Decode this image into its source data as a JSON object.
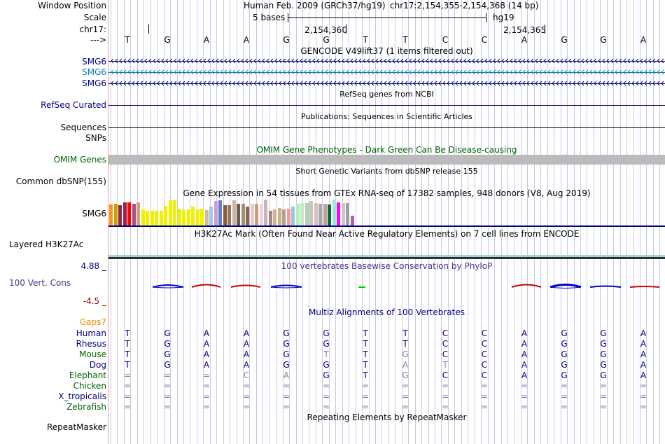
{
  "labels": {
    "window_position": "Window Position",
    "scale": "Scale",
    "chrom": "chr17:",
    "arrow": "--->",
    "smg6": "SMG6",
    "refseq": "RefSeq Curated",
    "sequences": "Sequences",
    "snps": "SNPs",
    "omim": "OMIM Genes",
    "common_dbsnp": "Common dbSNP(155)",
    "gtex": "SMG6",
    "h3k27ac": "Layered H3K27Ac",
    "phylop_max": "4.88 _",
    "phylop_label": "100 Vert. Cons",
    "phylop_min": "-4.5 _",
    "gaps": "Gaps7",
    "repeatmasker": "RepeatMasker"
  },
  "header": {
    "assembly": "Human Feb. 2009 (GRCh37/hg19)",
    "position": "chr17:2,154,355-2,154,368 (14 bp)",
    "scale_bases": "5 bases",
    "scale_db": "hg19",
    "coord_a": "2,154,360",
    "coord_b": "2,154,365"
  },
  "tracks": {
    "gencode": "GENCODE V49lift37 (1 items filtered out)",
    "refseq": "RefSeq genes from NCBI",
    "publications": "Publications: Sequences in Scientific Articles",
    "omim": "OMIM Gene Phenotypes - Dark Green Can Be Disease-causing",
    "dbsnp": "Short Genetic Variants from dbSNP release 155",
    "gtex": "Gene Expression in 54 tissues from GTEx RNA-seq of 17382 samples, 948 donors (V8, Aug 2019)",
    "h3k27ac": "H3K27Ac Mark (Often Found Near Active Regulatory Elements) on 7 cell lines from ENCODE",
    "phylop": "100 vertebrates Basewise Conservation by PhyloP",
    "multiz": "Multiz Alignments of 100 Vertebrates",
    "repeatmasker": "Repeating Elements by RepeatMasker"
  },
  "sequence": [
    "T",
    "G",
    "A",
    "A",
    "G",
    "G",
    "T",
    "T",
    "C",
    "C",
    "A",
    "G",
    "G",
    "A"
  ],
  "species": [
    {
      "name": "Human",
      "color": "#000080",
      "bases": [
        "T",
        "G",
        "A",
        "A",
        "G",
        "G",
        "T",
        "T",
        "C",
        "C",
        "A",
        "G",
        "G",
        "A"
      ]
    },
    {
      "name": "Rhesus",
      "color": "#000080",
      "bases": [
        "T",
        "G",
        "A",
        "A",
        "G",
        "G",
        "T",
        "T",
        "C",
        "C",
        "A",
        "G",
        "G",
        "A"
      ]
    },
    {
      "name": "Mouse",
      "color": "#006400",
      "bases": [
        "T",
        "G",
        "A",
        "A",
        "G",
        "T",
        "T",
        "G",
        "C",
        "C",
        "A",
        "G",
        "G",
        "A"
      ]
    },
    {
      "name": "Dog",
      "color": "#000080",
      "bases": [
        "T",
        "G",
        "A",
        "A",
        "G",
        "G",
        "T",
        "A",
        "T",
        "C",
        "A",
        "G",
        "G",
        "A"
      ]
    },
    {
      "name": "Elephant",
      "color": "#006400",
      "bases": [
        "=",
        "=",
        "=",
        "C",
        "A",
        "G",
        "T",
        "G",
        "C",
        "C",
        "A",
        "G",
        "G",
        "A"
      ]
    },
    {
      "name": "Chicken",
      "color": "#006400",
      "bases": [
        "=",
        "=",
        "=",
        "=",
        "=",
        "=",
        "=",
        "=",
        "=",
        "=",
        "=",
        "=",
        "=",
        "="
      ]
    },
    {
      "name": "X_tropicalis",
      "color": "#000080",
      "bases": [
        "=",
        "=",
        "=",
        "=",
        "=",
        "=",
        "=",
        "=",
        "=",
        "=",
        "=",
        "=",
        "=",
        "="
      ]
    },
    {
      "name": "Zebrafish",
      "color": "#006400",
      "bases": [
        "=",
        "=",
        "=",
        "=",
        "=",
        "=",
        "=",
        "=",
        "=",
        "=",
        "=",
        "=",
        "=",
        "="
      ]
    }
  ],
  "gtex_values": [
    0.46,
    0.46,
    0.46,
    0.46,
    0.46,
    0.46,
    0.46,
    0.46,
    0.46,
    0.46,
    0.46,
    0.46,
    0.46,
    0.46,
    0.46,
    0.46,
    0.46,
    0.46,
    0.46,
    0.46,
    0.46,
    0.46,
    0.46,
    0.46,
    0.46,
    0.46,
    0.46,
    0.46,
    0.46,
    0.46,
    0.46,
    0.46,
    0.46,
    0.46,
    0.46,
    0.46,
    0.46,
    0.46,
    0.46,
    0.46,
    0.46,
    0.46,
    0.46,
    0.46,
    0.46,
    0.46,
    0.46,
    0.46,
    0.46,
    0.46,
    0.46,
    0.46,
    0.46,
    0.46
  ],
  "gtex_heights": [
    30,
    31,
    29,
    33,
    33,
    31,
    33,
    23,
    21,
    21,
    21,
    21,
    28,
    36,
    36,
    24,
    22,
    23,
    27,
    23,
    24,
    22,
    27,
    35,
    36,
    29,
    29,
    36,
    31,
    31,
    27,
    31,
    31,
    31,
    37,
    21,
    23,
    25,
    23,
    24,
    27,
    31,
    32,
    32,
    35,
    32,
    31,
    31,
    30,
    37,
    33,
    32,
    32,
    14
  ],
  "gtex_colors": [
    "#f7941d",
    "#c8a000",
    "#8c2a4a",
    "#a0204a",
    "#ff0000",
    "#a0508c",
    "#d2a080",
    "#f0f000",
    "#f0f000",
    "#f0f000",
    "#f0f000",
    "#f0f000",
    "#f0f000",
    "#f0f000",
    "#f0f000",
    "#f0f000",
    "#f0f000",
    "#f0f000",
    "#f0f000",
    "#f0f000",
    "#f0f000",
    "#dcb4a0",
    "#a0c8f0",
    "#c8a0d2",
    "#6480c8",
    "#8c5a32",
    "#8c7864",
    "#c8b4a0",
    "#6e5a46",
    "#a09078",
    "#8c6450",
    "#e6c8d2",
    "#c8a078",
    "#f0d2e6",
    "#c8b4b4",
    "#a08c78",
    "#d2b48c",
    "#c8b48c",
    "#b4a08c",
    "#fa9696",
    "#96c8dc",
    "#b4f0b4",
    "#c8e6c8",
    "#b4d2b4",
    "#c8c8b4",
    "#dcbebe",
    "#aaaaaa",
    "#c8a0a0",
    "#0a6e32",
    "#a0e6dc",
    "#ff00ff",
    "#c8c8c8",
    "#a0a0a0",
    "#aa66aa"
  ],
  "colors": {
    "navy": "#000080",
    "gencode_alt": "#0a80c0",
    "omim_green": "#006400",
    "omim_gray": "#bbbbbb",
    "h3k27ac_teal": "#48b8b8",
    "phylop_title": "#3c3c8c",
    "phylop_min": "#8c0000",
    "gaps": "#e89000",
    "grid": "#c8c8e6"
  }
}
